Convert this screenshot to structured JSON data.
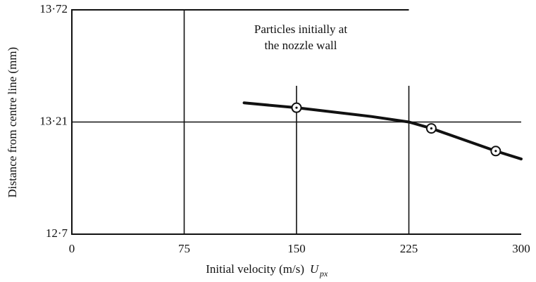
{
  "chart_data": {
    "type": "line",
    "annotation": [
      "Particles initially at",
      "the nozzle wall"
    ],
    "xlabel": "Initial velocity (m/s)",
    "xlabel_symbol": "U",
    "xlabel_subscript": "px",
    "ylabel": "Distance from centre line (mm)",
    "xlim": [
      0,
      300
    ],
    "xticks": [
      0,
      75,
      150,
      225,
      300
    ],
    "ylim": [
      12.7,
      13.72
    ],
    "yticks": [
      {
        "value": 12.7,
        "label": "12·7"
      },
      {
        "value": 13.21,
        "label": "13·21"
      },
      {
        "value": 13.72,
        "label": "13·72"
      }
    ],
    "grid": true,
    "color": "#111111",
    "curve": {
      "x": [
        115,
        150,
        200,
        225,
        240,
        283,
        300
      ],
      "values": [
        13.297,
        13.275,
        13.235,
        13.21,
        13.181,
        13.078,
        13.042
      ]
    },
    "points": {
      "x": [
        150,
        240,
        283
      ],
      "values": [
        13.275,
        13.181,
        13.078
      ]
    }
  }
}
